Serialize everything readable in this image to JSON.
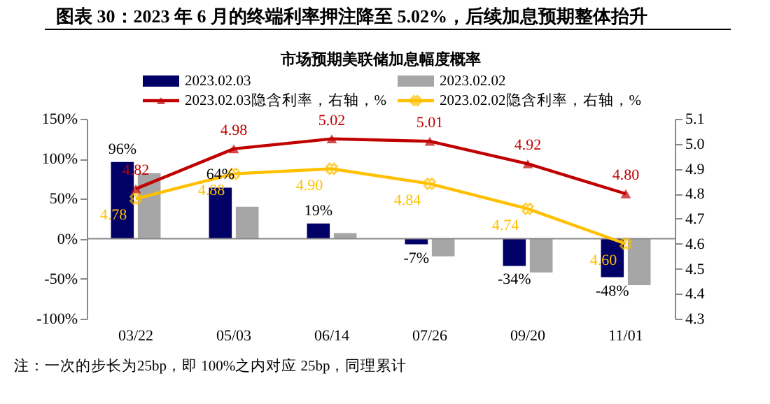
{
  "chart_data": {
    "type": "bar",
    "title": "图表 30：2023 年 6 月的终端利率押注降至 5.02%，后续加息预期整体抬升",
    "subtitle": "市场预期美联储加息幅度概率",
    "categories": [
      "03/22",
      "05/03",
      "06/14",
      "07/26",
      "09/20",
      "11/01"
    ],
    "series": [
      {
        "name": "2023.02.03",
        "color": "#000066",
        "values": [
          96,
          64,
          19,
          -7,
          -34,
          -48
        ],
        "value_labels": [
          "96%",
          "64%",
          "19%",
          "-7%",
          "-34%",
          "-48%"
        ]
      },
      {
        "name": "2023.02.02",
        "color": "#a6a6a6",
        "values": [
          82,
          40,
          7,
          -22,
          -42,
          -58
        ]
      },
      {
        "name": "2023.02.03隐含利率，右轴，%",
        "type": "line",
        "axis": "y2",
        "marker": "triangle",
        "color": "#c00000",
        "values": [
          4.82,
          4.98,
          5.02,
          5.01,
          4.92,
          4.8
        ],
        "value_labels": [
          "4.82",
          "4.98",
          "5.02",
          "5.01",
          "4.92",
          "4.80"
        ]
      },
      {
        "name": "2023.02.02隐含利率，右轴，%",
        "type": "line",
        "axis": "y2",
        "marker": "cross",
        "color": "#ffc000",
        "values": [
          4.78,
          4.88,
          4.9,
          4.84,
          4.74,
          4.6
        ],
        "value_labels": [
          "4.78",
          "4.88",
          "4.90",
          "4.84",
          "4.74",
          "4.60"
        ]
      }
    ],
    "ylim": [
      -100,
      150
    ],
    "yticks": [
      {
        "value": -100,
        "label": "-100%"
      },
      {
        "value": -50,
        "label": "-50%"
      },
      {
        "value": 0,
        "label": "0%"
      },
      {
        "value": 50,
        "label": "50%"
      },
      {
        "value": 100,
        "label": "100%"
      },
      {
        "value": 150,
        "label": "150%"
      }
    ],
    "y2lim": [
      4.3,
      5.1
    ],
    "y2ticks": [
      4.3,
      4.4,
      4.5,
      4.6,
      4.7,
      4.8,
      4.9,
      {
        "value": 5.0,
        "label": "5.0"
      },
      5.1
    ],
    "legend": "top",
    "grid": false,
    "ref_lines": [
      {
        "axis": "y",
        "value": 0,
        "color": "#888888"
      }
    ],
    "annotations": [
      "注：一次的步长为25bp，即 100%之内对应 25bp，同理累计"
    ]
  }
}
